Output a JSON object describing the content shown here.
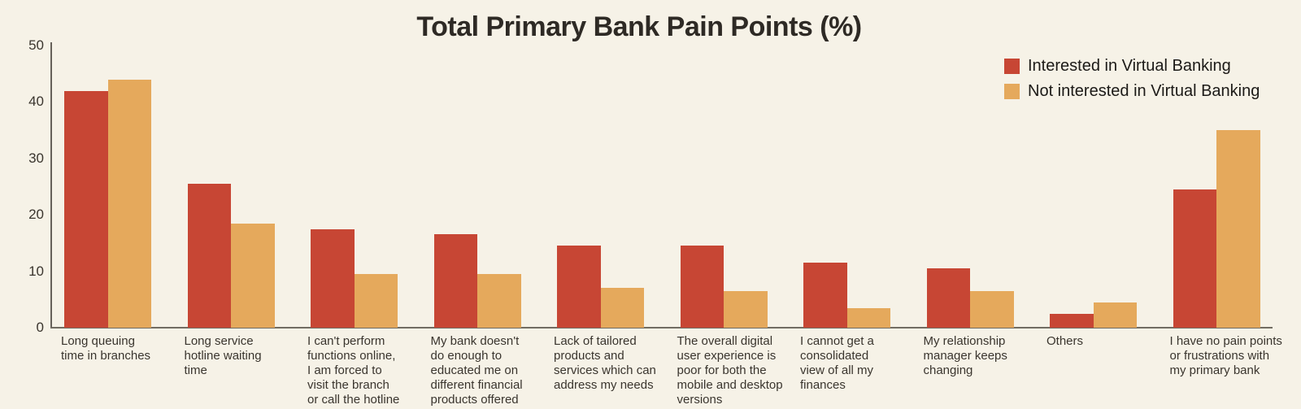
{
  "colors": {
    "background": "#f6f2e7",
    "interested": "#c74634",
    "not_interested": "#e5a95c",
    "axis": "#66615a",
    "text": "#3a352e"
  },
  "chart_data": {
    "type": "bar",
    "title": "Total Primary Bank Pain Points (%)",
    "xlabel": "",
    "ylabel": "",
    "ylim": [
      0,
      50
    ],
    "yticks": [
      0,
      10,
      20,
      30,
      40,
      50
    ],
    "grid": false,
    "legend_position": "top-right",
    "categories": [
      "Long queuing time in branches",
      "Long service hotline waiting time",
      "I can't perform functions online, I am forced to visit the branch or call the hotline",
      "My bank doesn't do enough to educated me on different financial products offered",
      "Lack of tailored products and services which can address my needs",
      "The overall digital user experience is poor for both the mobile and desktop versions",
      "I cannot get a consolidated view of all my finances",
      "My relationship manager keeps changing",
      "Others",
      "I have no pain points or frustrations with my primary bank"
    ],
    "categories_wrapped": [
      [
        "Long queuing",
        "time in branches"
      ],
      [
        "Long service",
        "hotline waiting",
        "time"
      ],
      [
        "I can't perform",
        "functions online,",
        "I am forced to",
        "visit the branch",
        "or call the hotline"
      ],
      [
        "My bank doesn't",
        "do enough to",
        "educated me on",
        "different financial",
        "products offered"
      ],
      [
        "Lack of tailored",
        "products and",
        "services which can",
        "address my needs"
      ],
      [
        "The overall digital",
        "user experience is",
        "poor for both the",
        "mobile and desktop",
        "versions"
      ],
      [
        "I cannot get a",
        "consolidated",
        "view of all my",
        "finances"
      ],
      [
        "My relationship",
        "manager keeps",
        "changing"
      ],
      [
        "Others"
      ],
      [
        "I have no pain points",
        "or frustrations with",
        "my primary bank"
      ]
    ],
    "series": [
      {
        "name": "Interested in Virtual Banking",
        "color": "#c74634",
        "values": [
          42,
          25.5,
          17.5,
          16.5,
          14.5,
          14.5,
          11.5,
          10.5,
          2.5,
          24.5
        ]
      },
      {
        "name": "Not interested in Virtual Banking",
        "color": "#e5a95c",
        "values": [
          44,
          18.5,
          9.5,
          9.5,
          7,
          6.5,
          3.5,
          6.5,
          4.5,
          35
        ]
      }
    ]
  }
}
